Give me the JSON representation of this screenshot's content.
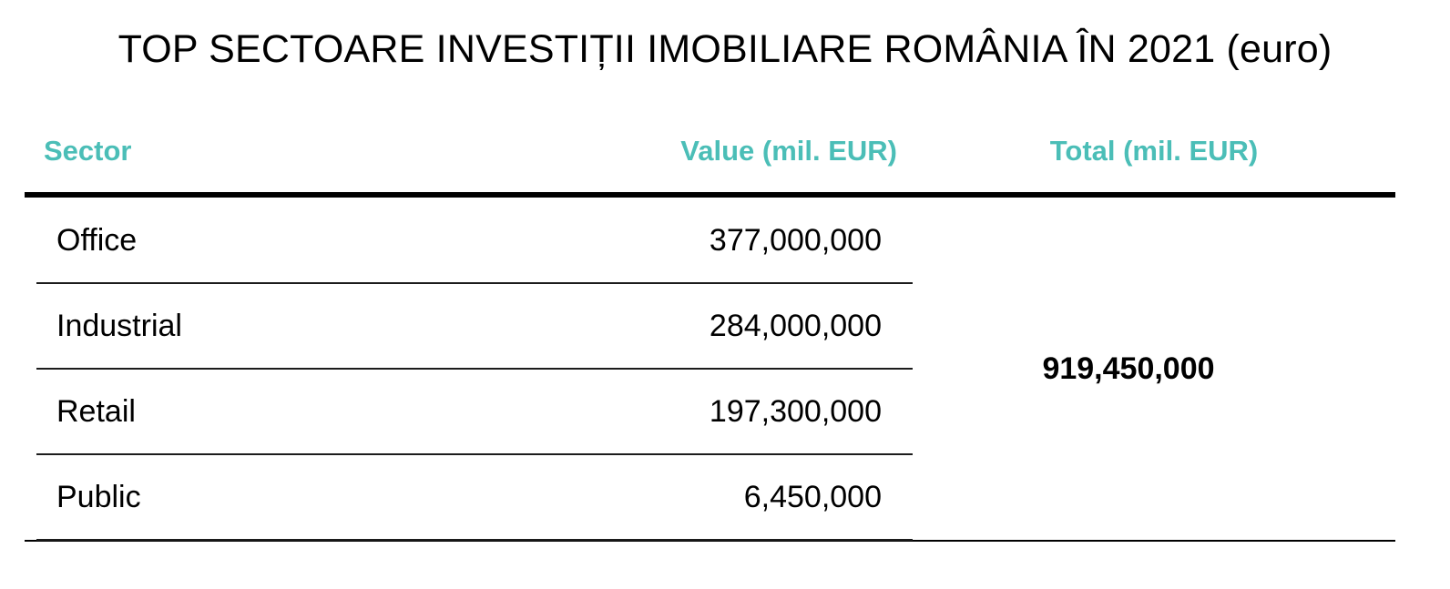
{
  "title": "TOP SECTOARE INVESTIȚII IMOBILIARE ROMÂNIA ÎN 2021 (euro)",
  "colors": {
    "header_accent": "#4BBEB7",
    "line": "#000000"
  },
  "table": {
    "headers": {
      "sector": "Sector",
      "value": "Value (mil. EUR)",
      "total": "Total (mil. EUR)"
    },
    "rows": [
      {
        "sector": "Office",
        "value": "377,000,000"
      },
      {
        "sector": "Industrial",
        "value": "284,000,000"
      },
      {
        "sector": "Retail",
        "value": "197,300,000"
      },
      {
        "sector": "Public",
        "value": "6,450,000"
      }
    ],
    "total": "919,450,000"
  },
  "chart_data": {
    "type": "table",
    "title": "TOP SECTOARE INVESTIȚII IMOBILIARE ROMÂNIA ÎN 2021 (euro)",
    "columns": [
      "Sector",
      "Value (mil. EUR)",
      "Total (mil. EUR)"
    ],
    "categories": [
      "Office",
      "Industrial",
      "Retail",
      "Public"
    ],
    "values": [
      377000000,
      284000000,
      197300000,
      6450000
    ],
    "total": 919450000
  }
}
